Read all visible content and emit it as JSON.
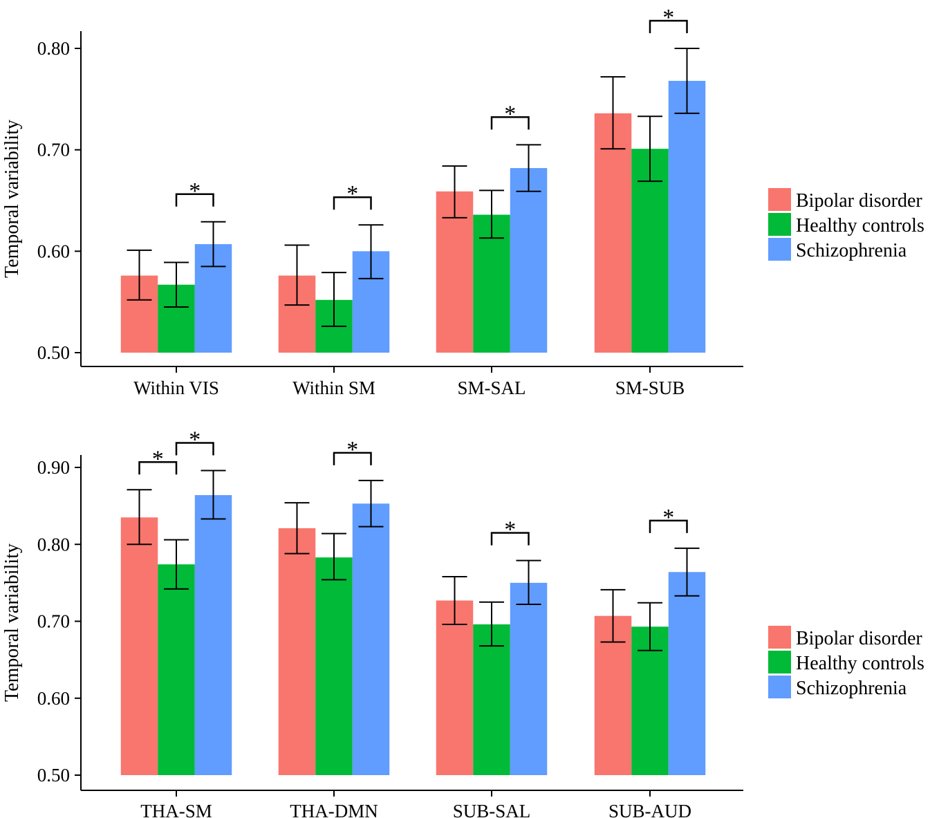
{
  "colors": {
    "Bipolar disorder": "#f8766d",
    "Healthy controls": "#00ba38",
    "Schizophrenia": "#619cff"
  },
  "chart_data": [
    {
      "type": "bar",
      "ylabel": "Temporal variability",
      "xlabel": "",
      "ylim": [
        0.5,
        0.815
      ],
      "yticks": [
        0.5,
        0.6,
        0.7,
        0.8
      ],
      "ytick_labels": [
        "0.50",
        "0.60",
        "0.70",
        "0.80"
      ],
      "categories": [
        "Within VIS",
        "Within SM",
        "SM-SAL",
        "SM-SUB"
      ],
      "series": [
        {
          "name": "Bipolar disorder",
          "values": [
            0.576,
            0.576,
            0.659,
            0.736
          ],
          "err_low": [
            0.552,
            0.547,
            0.633,
            0.701
          ],
          "err_high": [
            0.601,
            0.606,
            0.684,
            0.772
          ]
        },
        {
          "name": "Healthy controls",
          "values": [
            0.567,
            0.552,
            0.636,
            0.701
          ],
          "err_low": [
            0.545,
            0.526,
            0.613,
            0.669
          ],
          "err_high": [
            0.589,
            0.579,
            0.66,
            0.733
          ]
        },
        {
          "name": "Schizophrenia",
          "values": [
            0.607,
            0.6,
            0.682,
            0.768
          ],
          "err_low": [
            0.585,
            0.573,
            0.659,
            0.736
          ],
          "err_high": [
            0.629,
            0.626,
            0.705,
            0.8
          ]
        }
      ],
      "significance": [
        {
          "category": 0,
          "from": 1,
          "to": 2,
          "label": "*"
        },
        {
          "category": 1,
          "from": 1,
          "to": 2,
          "label": "*"
        },
        {
          "category": 2,
          "from": 1,
          "to": 2,
          "label": "*"
        },
        {
          "category": 3,
          "from": 1,
          "to": 2,
          "label": "*"
        }
      ],
      "legend": [
        "Bipolar disorder",
        "Healthy controls",
        "Schizophrenia"
      ],
      "legend_position": "right"
    },
    {
      "type": "bar",
      "ylabel": "Temporal variability",
      "xlabel": "",
      "ylim": [
        0.5,
        0.91
      ],
      "yticks": [
        0.5,
        0.6,
        0.7,
        0.8,
        0.9
      ],
      "ytick_labels": [
        "0.50",
        "0.60",
        "0.70",
        "0.80",
        "0.90"
      ],
      "categories": [
        "THA-SM",
        "THA-DMN",
        "SUB-SAL",
        "SUB-AUD"
      ],
      "series": [
        {
          "name": "Bipolar disorder",
          "values": [
            0.835,
            0.821,
            0.727,
            0.707
          ],
          "err_low": [
            0.8,
            0.788,
            0.696,
            0.673
          ],
          "err_high": [
            0.871,
            0.854,
            0.758,
            0.741
          ]
        },
        {
          "name": "Healthy controls",
          "values": [
            0.774,
            0.783,
            0.696,
            0.693
          ],
          "err_low": [
            0.742,
            0.754,
            0.668,
            0.662
          ],
          "err_high": [
            0.806,
            0.814,
            0.725,
            0.724
          ]
        },
        {
          "name": "Schizophrenia",
          "values": [
            0.864,
            0.853,
            0.75,
            0.764
          ],
          "err_low": [
            0.833,
            0.823,
            0.722,
            0.733
          ],
          "err_high": [
            0.896,
            0.883,
            0.779,
            0.795
          ]
        }
      ],
      "significance": [
        {
          "category": 0,
          "from": 0,
          "to": 1,
          "label": "*"
        },
        {
          "category": 0,
          "from": 1,
          "to": 2,
          "label": "*"
        },
        {
          "category": 1,
          "from": 1,
          "to": 2,
          "label": "*"
        },
        {
          "category": 2,
          "from": 1,
          "to": 2,
          "label": "*"
        },
        {
          "category": 3,
          "from": 1,
          "to": 2,
          "label": "*"
        }
      ],
      "legend": [
        "Bipolar disorder",
        "Healthy controls",
        "Schizophrenia"
      ],
      "legend_position": "right"
    }
  ]
}
